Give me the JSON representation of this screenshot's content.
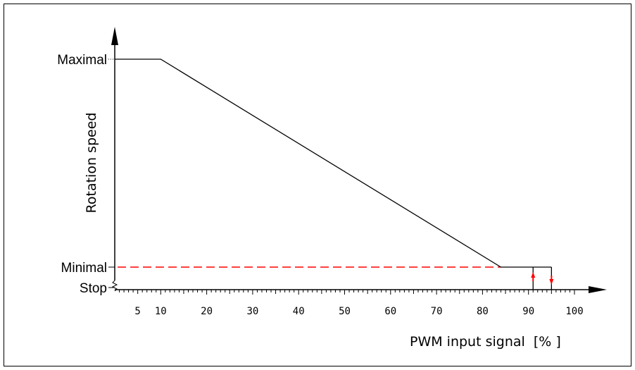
{
  "chart_data": {
    "type": "line",
    "ylabel": "Rotation speed",
    "xlabel": "PWM input signal",
    "xlabel_unit": "[% ]",
    "xlim": [
      0,
      100
    ],
    "ylim": [
      "Stop",
      "Maximal"
    ],
    "x_tick_labels": [
      "5",
      "10",
      "20",
      "30",
      "40",
      "50",
      "60",
      "70",
      "80",
      "90",
      "100"
    ],
    "x_tick_values": [
      5,
      10,
      20,
      30,
      40,
      50,
      60,
      70,
      80,
      90,
      100
    ],
    "y_levels": [
      {
        "label": "Maximal",
        "value": 1.0
      },
      {
        "label": "Minimal",
        "value": 0.0
      },
      {
        "label": "Stop",
        "value": -1.0
      }
    ],
    "series": [
      {
        "points": [
          [
            0,
            1.0
          ],
          [
            10,
            1.0
          ],
          [
            84,
            0.0
          ],
          [
            95,
            0.0
          ]
        ]
      }
    ],
    "minimal_reference_line": {
      "from_x": 0,
      "to_x": 84,
      "y": 0.0,
      "color": "#ff0000",
      "style": "dashed"
    },
    "hysteresis": {
      "x_low": 91,
      "x_high": 95,
      "arrow_color": "#ff0000"
    },
    "colors": {
      "axis": "#000000",
      "curve": "#000000",
      "reference": "#ff0000"
    }
  }
}
